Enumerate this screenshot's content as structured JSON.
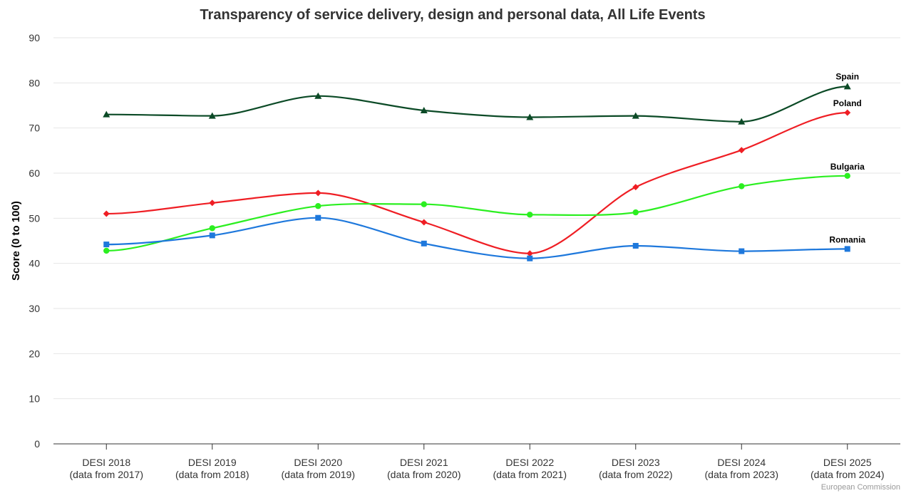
{
  "chart_data": {
    "type": "line",
    "title": "Transparency of service delivery, design and personal data, All Life Events",
    "ylabel": "Score (0 to 100)",
    "xlabel": "",
    "ylim": [
      0,
      90
    ],
    "yticks": [
      "0",
      "10",
      "20",
      "30",
      "40",
      "50",
      "60",
      "70",
      "80",
      "90"
    ],
    "grid": true,
    "categories": [
      [
        "DESI 2018",
        "(data from 2017)"
      ],
      [
        "DESI 2019",
        "(data from 2018)"
      ],
      [
        "DESI 2020",
        "(data from 2019)"
      ],
      [
        "DESI 2021",
        "(data from 2020)"
      ],
      [
        "DESI 2022",
        "(data from 2021)"
      ],
      [
        "DESI 2023",
        "(data from 2022)"
      ],
      [
        "DESI 2024",
        "(data from 2023)"
      ],
      [
        "DESI 2025",
        "(data from 2024)"
      ]
    ],
    "series": [
      {
        "name": "Spain",
        "color": "#0b4a26",
        "marker": "triangle",
        "values": [
          73.0,
          72.7,
          77.1,
          73.9,
          72.4,
          72.7,
          71.4,
          79.2
        ]
      },
      {
        "name": "Poland",
        "color": "#ef1e24",
        "marker": "diamond",
        "values": [
          51.0,
          53.4,
          55.6,
          49.1,
          42.2,
          56.9,
          65.1,
          73.4
        ]
      },
      {
        "name": "Bulgaria",
        "color": "#2bef20",
        "marker": "circle",
        "values": [
          42.8,
          47.8,
          52.7,
          53.1,
          50.8,
          51.3,
          57.1,
          59.4
        ]
      },
      {
        "name": "Romania",
        "color": "#1e78dc",
        "marker": "square",
        "values": [
          44.2,
          46.2,
          50.1,
          44.4,
          41.1,
          43.9,
          42.7,
          43.2
        ]
      }
    ],
    "legend": "end-of-line labels",
    "credit": "European Commission"
  }
}
